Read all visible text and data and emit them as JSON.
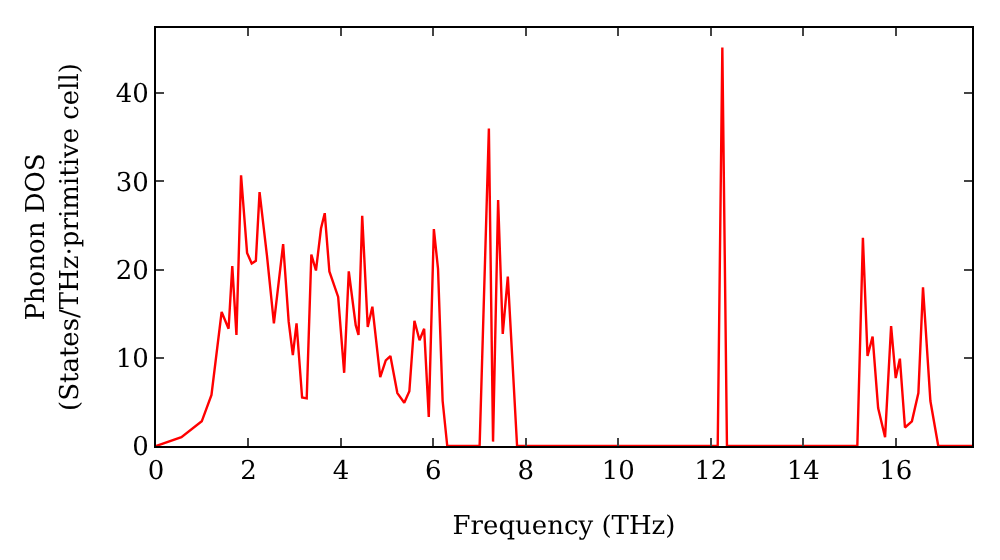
{
  "chart_data": {
    "type": "line",
    "xlabel": "Frequency (THz)",
    "ylabel": "Phonon DOS\n(States/THz·primitive cell)",
    "xlim": [
      0,
      17.65
    ],
    "ylim": [
      0,
      47.4
    ],
    "xticks": [
      0,
      2,
      4,
      6,
      8,
      10,
      12,
      14,
      16
    ],
    "yticks": [
      0,
      10,
      20,
      30,
      40
    ],
    "series": [
      {
        "color": "#ff0000",
        "x": [
          0.0,
          0.55,
          0.99,
          1.2,
          1.42,
          1.57,
          1.65,
          1.74,
          1.84,
          1.97,
          2.07,
          2.16,
          2.24,
          2.4,
          2.55,
          2.75,
          2.87,
          2.96,
          3.04,
          3.16,
          3.26,
          3.36,
          3.46,
          3.57,
          3.65,
          3.75,
          3.94,
          4.07,
          4.17,
          4.32,
          4.38,
          4.46,
          4.58,
          4.68,
          4.85,
          4.97,
          5.07,
          5.22,
          5.37,
          5.48,
          5.59,
          5.7,
          5.8,
          5.9,
          6.01,
          6.1,
          6.2,
          6.3,
          7.0,
          7.2,
          7.29,
          7.4,
          7.5,
          7.61,
          7.81,
          12.15,
          12.25,
          12.35,
          15.17,
          15.29,
          15.39,
          15.5,
          15.62,
          15.77,
          15.9,
          16.0,
          16.09,
          16.2,
          16.35,
          16.49,
          16.59,
          16.75,
          16.92,
          17.65
        ],
        "values": [
          0,
          1.0,
          2.8,
          5.8,
          15.2,
          13.3,
          20.4,
          12.6,
          30.7,
          21.9,
          20.7,
          21,
          28.8,
          21.6,
          13.9,
          22.9,
          14.1,
          10.3,
          13.9,
          5.5,
          5.4,
          21.7,
          19.9,
          24.7,
          26.4,
          19.8,
          16.9,
          8.3,
          19.8,
          13.7,
          12.6,
          26.1,
          13.5,
          15.8,
          7.8,
          9.7,
          10.2,
          6.0,
          4.9,
          6.2,
          14.2,
          12,
          13.3,
          3.3,
          24.6,
          20.1,
          5.1,
          0,
          0,
          36,
          0.5,
          27.9,
          12.7,
          19.2,
          0,
          0,
          45.2,
          0,
          0,
          23.6,
          10.2,
          12.4,
          4.3,
          1,
          13.6,
          7.7,
          9.9,
          2.1,
          2.8,
          6,
          18,
          5.1,
          0,
          0
        ]
      }
    ]
  }
}
